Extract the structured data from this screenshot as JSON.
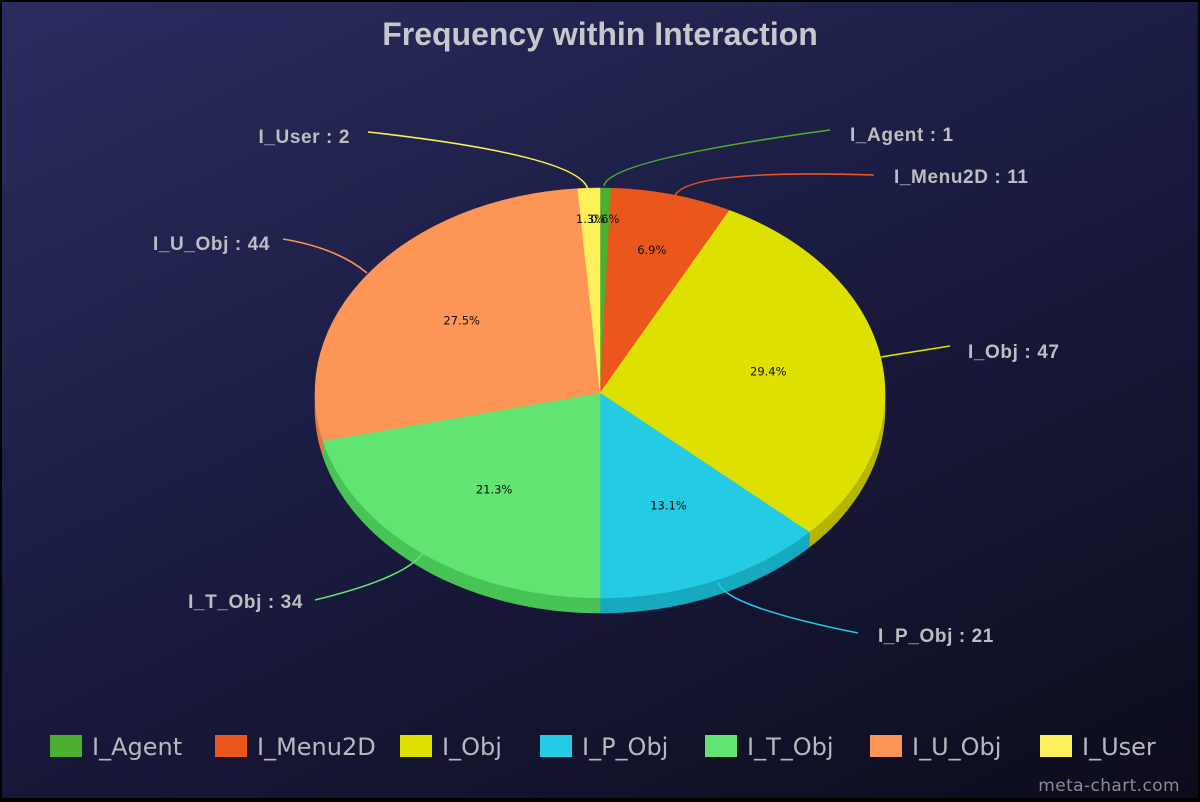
{
  "chart_data": {
    "type": "pie",
    "title": "Frequency within Interaction",
    "style": "3d",
    "legend_position": "bottom",
    "slices": [
      {
        "label": "I_Agent",
        "value": 1,
        "percent_label": "0.6%",
        "callout": "I_Agent : 1",
        "color": "#4caf2f",
        "side_color": "#3c9326"
      },
      {
        "label": "I_Menu2D",
        "value": 11,
        "percent_label": "6.9%",
        "callout": "I_Menu2D : 11",
        "color": "#ea561c",
        "side_color": "#c24514"
      },
      {
        "label": "I_Obj",
        "value": 47,
        "percent_label": "29.4%",
        "callout": "I_Obj : 47",
        "color": "#dee000",
        "side_color": "#b5b600"
      },
      {
        "label": "I_P_Obj",
        "value": 21,
        "percent_label": "13.1%",
        "callout": "I_P_Obj : 21",
        "color": "#24cbe3",
        "side_color": "#17a9bf"
      },
      {
        "label": "I_T_Obj",
        "value": 34,
        "percent_label": "21.3%",
        "callout": "I_T_Obj : 34",
        "color": "#62e472",
        "side_color": "#47c455"
      },
      {
        "label": "I_U_Obj",
        "value": 44,
        "percent_label": "27.5%",
        "callout": "I_U_Obj : 44",
        "color": "#fd9557",
        "side_color": "#d9783f"
      },
      {
        "label": "I_User",
        "value": 2,
        "percent_label": "1.3%",
        "callout": "I_User : 2",
        "color": "#fdf05a",
        "side_color": "#d8cc3e"
      }
    ]
  },
  "watermark": "meta-chart.com"
}
